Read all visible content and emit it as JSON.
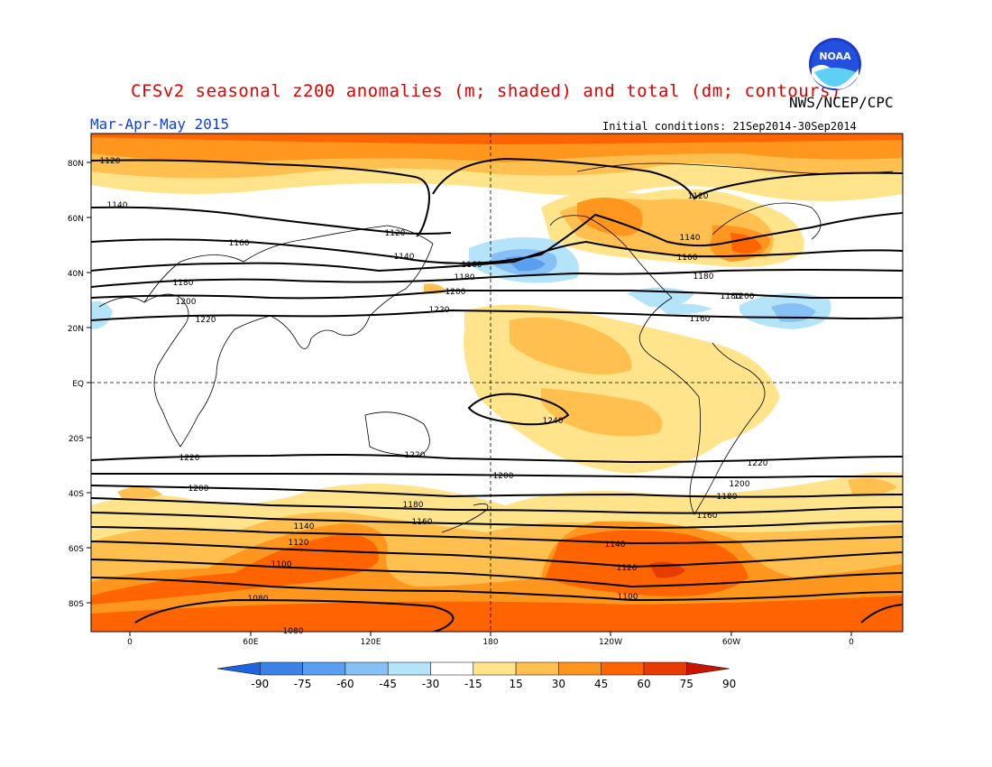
{
  "header": {
    "title": "CFSv2 seasonal z200 anomalies (m; shaded) and total (dm; contours)",
    "agency": "NWS/NCEP/CPC",
    "season": "Mar-Apr-May 2015",
    "initial_conditions": "Initial conditions: 21Sep2014-30Sep2014",
    "logo_text": "NOAA"
  },
  "axes": {
    "lat_labels": [
      "80N",
      "60N",
      "40N",
      "20N",
      "EQ",
      "20S",
      "40S",
      "60S",
      "80S"
    ],
    "lon_labels": [
      "0",
      "60E",
      "120E",
      "180",
      "120W",
      "60W",
      "0"
    ]
  },
  "contour_labels": [
    "1120",
    "1140",
    "1120",
    "1160",
    "1140",
    "1160",
    "1180",
    "1200",
    "1220",
    "1120",
    "1140",
    "1160",
    "1180",
    "1200",
    "1220",
    "1240",
    "1220",
    "1200",
    "1180",
    "1160",
    "1140",
    "1120",
    "1100",
    "1080",
    "1080",
    "1220",
    "1200",
    "1180",
    "1160",
    "1140",
    "1120",
    "1100",
    "1220",
    "1200",
    "1180",
    "1160",
    "1200",
    "1180"
  ],
  "colorbar": {
    "labels": [
      "-90",
      "-75",
      "-60",
      "-45",
      "-30",
      "-15",
      "15",
      "30",
      "45",
      "60",
      "75",
      "90"
    ],
    "colors": [
      "#1e64dc",
      "#3c82e6",
      "#5a9ef0",
      "#86c0f5",
      "#b4e4fa",
      "#ffffff",
      "#ffe48c",
      "#ffc050",
      "#ff961e",
      "#ff6400",
      "#e63c00",
      "#c81400"
    ]
  }
}
